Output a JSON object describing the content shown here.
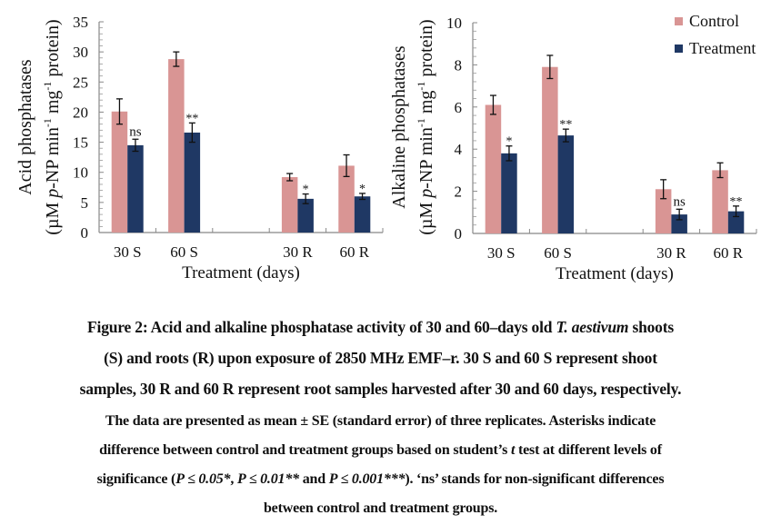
{
  "chart_data": [
    {
      "type": "bar",
      "title": "",
      "xlabel": "Treatment (days)",
      "ylabel_line1": "Acid phosphatases",
      "ylabel_line2": "(µM p-NP min-1 mg-1 protein)",
      "categories": [
        "30 S",
        "60 S",
        "",
        "30 R",
        "60 R"
      ],
      "ylim": [
        0,
        35
      ],
      "yticks": [
        0,
        5,
        10,
        15,
        20,
        25,
        30,
        35
      ],
      "minor_ticks_per_major": 5,
      "series": [
        {
          "name": "Control",
          "color": "#D99594",
          "values": [
            20.1,
            28.8,
            null,
            9.2,
            11.1
          ],
          "errors": [
            2.1,
            1.2,
            null,
            0.6,
            1.8
          ]
        },
        {
          "name": "Treatment",
          "color": "#1F3864",
          "values": [
            14.5,
            16.6,
            null,
            5.6,
            6.0
          ],
          "errors": [
            1.0,
            1.6,
            null,
            0.8,
            0.5
          ]
        }
      ],
      "annotations": [
        "ns",
        "**",
        "",
        "*",
        "*"
      ],
      "legend": null
    },
    {
      "type": "bar",
      "title": "",
      "xlabel": "Treatment (days)",
      "ylabel_line1": "Alkaline phosphatases",
      "ylabel_line2": "(µM p-NP min-1 mg-1 protein)",
      "categories": [
        "30 S",
        "60 S",
        "",
        "30 R",
        "60 R"
      ],
      "ylim": [
        0,
        10
      ],
      "yticks": [
        0,
        2,
        4,
        6,
        8,
        10
      ],
      "minor_ticks_per_major": 5,
      "series": [
        {
          "name": "Control",
          "color": "#D99594",
          "values": [
            6.1,
            7.9,
            null,
            2.1,
            3.0
          ],
          "errors": [
            0.45,
            0.55,
            null,
            0.45,
            0.35
          ]
        },
        {
          "name": "Treatment",
          "color": "#1F3864",
          "values": [
            3.8,
            4.65,
            null,
            0.9,
            1.05
          ],
          "errors": [
            0.35,
            0.3,
            null,
            0.25,
            0.25
          ]
        }
      ],
      "annotations": [
        "*",
        "**",
        "",
        "ns",
        "**"
      ],
      "legend": "top-right"
    }
  ],
  "ylabel_parts": {
    "open": "(µM ",
    "p": "p",
    "np_min": "-NP min",
    "sup1": "-1",
    "mg": " mg",
    "sup2": "-1",
    "protein": " protein)"
  },
  "caption": {
    "line1_a": "Figure 2: Acid and alkaline phosphatase activity of 30 and 60–days old ",
    "line1_italic": "T. aestivum",
    "line1_b": " shoots",
    "line2": "(S) and roots (R) upon exposure of 2850 MHz EMF–r. 30 S and 60 S represent shoot",
    "line3": "samples, 30 R and 60 R represent root samples harvested after 30 and 60 days, respectively.",
    "line4": "The data are presented as mean ± SE (standard error) of three replicates. Asterisks indicate",
    "line5_a": "difference between control and treatment groups based on student’s ",
    "line5_italic": "t",
    "line5_b": " test at different levels of",
    "line6_a": "significance (",
    "line6_i1": "P ≤ 0.05*",
    "line6_b": ", ",
    "line6_i2": "P ≤ 0.01**",
    "line6_c": " and ",
    "line6_i3": "P ≤ 0.001***",
    "line6_d": "). ‘ns’ stands for non-significant differences",
    "line7": "between control and treatment groups."
  }
}
